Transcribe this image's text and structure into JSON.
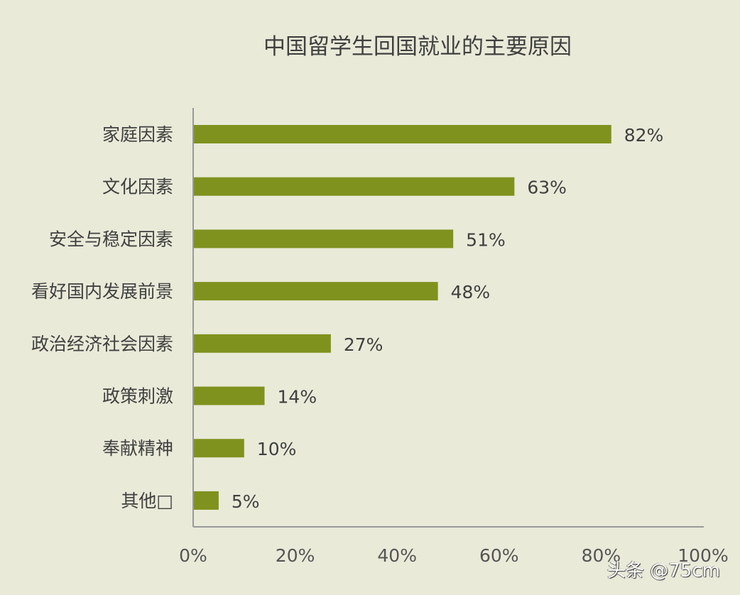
{
  "chart_data": {
    "type": "bar",
    "orientation": "horizontal",
    "title": "中国留学生回国就业的主要原因",
    "categories": [
      "家庭因素",
      "文化因素",
      "安全与稳定因素",
      "看好国内发展前景",
      "政治经济社会因素",
      "政策刺激",
      "奉献精神",
      "其他□"
    ],
    "values": [
      82,
      63,
      51,
      48,
      27,
      14,
      10,
      5
    ],
    "data_labels": [
      "82%",
      "63%",
      "51%",
      "48%",
      "27%",
      "14%",
      "10%",
      "5%"
    ],
    "xlim": [
      0,
      100
    ],
    "x_ticks": [
      "0%",
      "20%",
      "40%",
      "60%",
      "80%",
      "100%"
    ],
    "grid": false,
    "legend": "none",
    "bar_color": "#7f921e",
    "background_color": "#e9ead8"
  },
  "watermark": "头条 @75cm"
}
